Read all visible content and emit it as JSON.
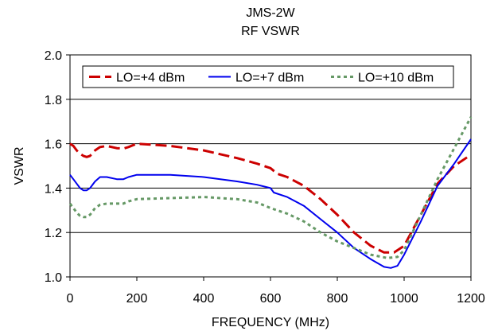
{
  "chart_data": {
    "type": "line",
    "title": "JMS-2W",
    "subtitle": "RF VSWR",
    "xlabel": "FREQUENCY (MHz)",
    "ylabel": "VSWR",
    "xlim": [
      0,
      1200
    ],
    "ylim": [
      1.0,
      2.0
    ],
    "x_ticks": [
      "0",
      "200",
      "400",
      "600",
      "800",
      "1000",
      "1200"
    ],
    "y_ticks": [
      "1.0",
      "1.2",
      "1.4",
      "1.6",
      "1.8",
      "2.0"
    ],
    "grid": "horizontal",
    "legend_position": "top",
    "series": [
      {
        "name": "LO=+4 dBm",
        "color": "#cc0000",
        "dash": "dashed",
        "points": [
          [
            0,
            1.6
          ],
          [
            10,
            1.59
          ],
          [
            20,
            1.57
          ],
          [
            30,
            1.555
          ],
          [
            40,
            1.545
          ],
          [
            50,
            1.54
          ],
          [
            60,
            1.545
          ],
          [
            75,
            1.57
          ],
          [
            90,
            1.585
          ],
          [
            110,
            1.59
          ],
          [
            140,
            1.58
          ],
          [
            160,
            1.578
          ],
          [
            175,
            1.585
          ],
          [
            200,
            1.6
          ],
          [
            300,
            1.59
          ],
          [
            400,
            1.57
          ],
          [
            500,
            1.535
          ],
          [
            560,
            1.51
          ],
          [
            600,
            1.49
          ],
          [
            620,
            1.465
          ],
          [
            650,
            1.45
          ],
          [
            700,
            1.41
          ],
          [
            750,
            1.35
          ],
          [
            800,
            1.28
          ],
          [
            850,
            1.2
          ],
          [
            900,
            1.14
          ],
          [
            940,
            1.11
          ],
          [
            970,
            1.11
          ],
          [
            1000,
            1.14
          ],
          [
            1050,
            1.28
          ],
          [
            1100,
            1.42
          ],
          [
            1150,
            1.5
          ],
          [
            1200,
            1.55
          ]
        ]
      },
      {
        "name": "LO=+7 dBm",
        "color": "#0000ee",
        "dash": "solid",
        "points": [
          [
            0,
            1.46
          ],
          [
            10,
            1.44
          ],
          [
            20,
            1.42
          ],
          [
            30,
            1.4
          ],
          [
            40,
            1.39
          ],
          [
            50,
            1.39
          ],
          [
            60,
            1.4
          ],
          [
            75,
            1.43
          ],
          [
            90,
            1.45
          ],
          [
            110,
            1.45
          ],
          [
            140,
            1.44
          ],
          [
            160,
            1.44
          ],
          [
            175,
            1.45
          ],
          [
            200,
            1.46
          ],
          [
            300,
            1.46
          ],
          [
            400,
            1.45
          ],
          [
            500,
            1.43
          ],
          [
            560,
            1.415
          ],
          [
            600,
            1.4
          ],
          [
            610,
            1.38
          ],
          [
            650,
            1.36
          ],
          [
            700,
            1.32
          ],
          [
            750,
            1.26
          ],
          [
            800,
            1.2
          ],
          [
            850,
            1.13
          ],
          [
            900,
            1.08
          ],
          [
            940,
            1.045
          ],
          [
            960,
            1.04
          ],
          [
            980,
            1.05
          ],
          [
            1000,
            1.1
          ],
          [
            1050,
            1.25
          ],
          [
            1100,
            1.41
          ],
          [
            1150,
            1.51
          ],
          [
            1200,
            1.62
          ]
        ]
      },
      {
        "name": "LO=+10 dBm",
        "color": "#669966",
        "dash": "dotted",
        "points": [
          [
            0,
            1.33
          ],
          [
            10,
            1.31
          ],
          [
            20,
            1.29
          ],
          [
            30,
            1.275
          ],
          [
            40,
            1.27
          ],
          [
            50,
            1.27
          ],
          [
            60,
            1.28
          ],
          [
            75,
            1.31
          ],
          [
            90,
            1.325
          ],
          [
            110,
            1.33
          ],
          [
            140,
            1.33
          ],
          [
            160,
            1.33
          ],
          [
            175,
            1.34
          ],
          [
            200,
            1.35
          ],
          [
            300,
            1.355
          ],
          [
            400,
            1.36
          ],
          [
            500,
            1.35
          ],
          [
            560,
            1.335
          ],
          [
            600,
            1.31
          ],
          [
            650,
            1.285
          ],
          [
            700,
            1.25
          ],
          [
            750,
            1.2
          ],
          [
            800,
            1.16
          ],
          [
            850,
            1.13
          ],
          [
            900,
            1.1
          ],
          [
            950,
            1.085
          ],
          [
            980,
            1.09
          ],
          [
            1000,
            1.12
          ],
          [
            1050,
            1.28
          ],
          [
            1100,
            1.44
          ],
          [
            1150,
            1.58
          ],
          [
            1200,
            1.72
          ]
        ]
      }
    ]
  }
}
